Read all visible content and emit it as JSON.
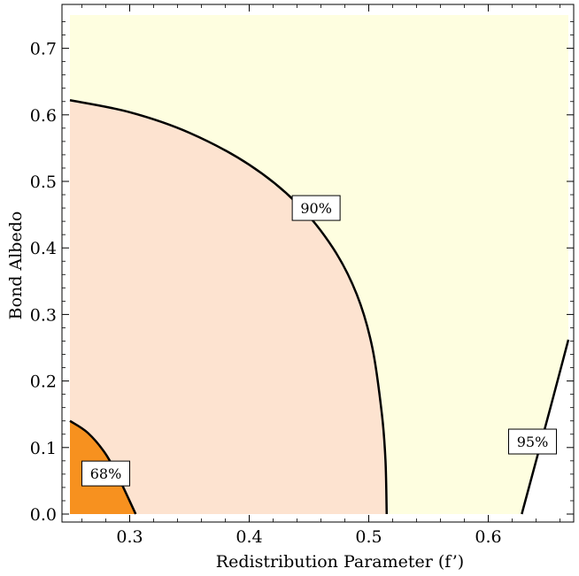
{
  "chart_data": {
    "type": "contour",
    "xlabel": "Redistribution Parameter (f’)",
    "ylabel": "Bond Albedo",
    "xlim": [
      0.25,
      0.667
    ],
    "ylim": [
      0.0,
      0.75
    ],
    "xticks": [
      {
        "value": 0.3,
        "label": "0.3"
      },
      {
        "value": 0.4,
        "label": "0.4"
      },
      {
        "value": 0.5,
        "label": "0.5"
      },
      {
        "value": 0.6,
        "label": "0.6"
      }
    ],
    "yticks": [
      {
        "value": 0.0,
        "label": "0.0"
      },
      {
        "value": 0.1,
        "label": "0.1"
      },
      {
        "value": 0.2,
        "label": "0.2"
      },
      {
        "value": 0.3,
        "label": "0.3"
      },
      {
        "value": 0.4,
        "label": "0.4"
      },
      {
        "value": 0.5,
        "label": "0.5"
      },
      {
        "value": 0.6,
        "label": "0.6"
      },
      {
        "value": 0.7,
        "label": "0.7"
      }
    ],
    "background_color": "#fefee0",
    "regions": [
      {
        "level": "90%",
        "color": "#fde3d0"
      },
      {
        "level": "68%",
        "color": "#f7911f"
      }
    ],
    "contours": [
      {
        "label": "90%",
        "label_at": [
          0.456,
          0.46
        ],
        "points": [
          [
            0.25,
            0.622
          ],
          [
            0.3,
            0.604
          ],
          [
            0.35,
            0.573
          ],
          [
            0.4,
            0.525
          ],
          [
            0.44,
            0.467
          ],
          [
            0.47,
            0.4
          ],
          [
            0.49,
            0.33
          ],
          [
            0.503,
            0.25
          ],
          [
            0.511,
            0.15
          ],
          [
            0.514,
            0.08
          ],
          [
            0.515,
            0.0
          ]
        ]
      },
      {
        "label": "68%",
        "label_at": [
          0.28,
          0.061
        ],
        "points": [
          [
            0.25,
            0.14
          ],
          [
            0.265,
            0.122
          ],
          [
            0.28,
            0.09
          ],
          [
            0.292,
            0.05
          ],
          [
            0.305,
            0.0
          ]
        ]
      },
      {
        "label": "95%",
        "label_at": [
          0.637,
          0.109
        ],
        "points": [
          [
            0.628,
            0.0
          ],
          [
            0.64,
            0.08
          ],
          [
            0.652,
            0.16
          ],
          [
            0.667,
            0.262
          ]
        ]
      }
    ]
  }
}
